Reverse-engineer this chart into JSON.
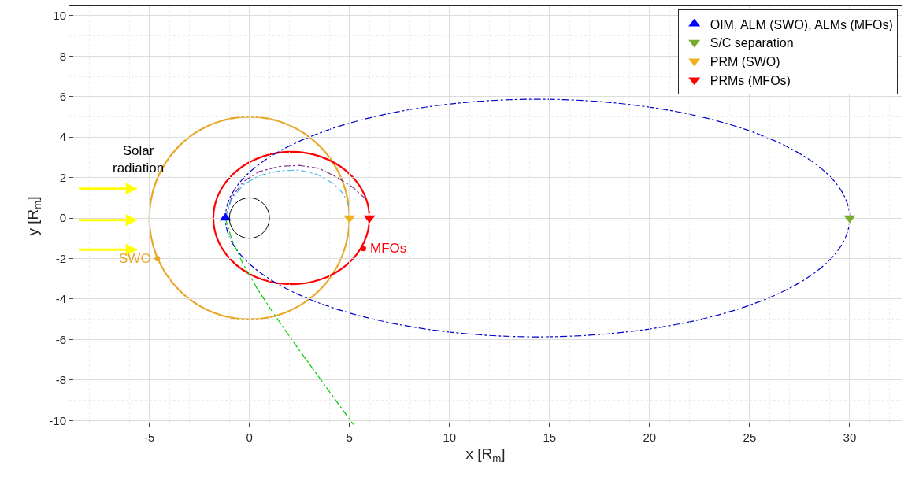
{
  "chart_data": {
    "type": "line",
    "xlabel": "x [R$_{m}$]",
    "ylabel": "y [R$_{m}$]",
    "xlim": [
      -9,
      32.6
    ],
    "ylim": [
      -10.3,
      10.5
    ],
    "xticks": [
      -5,
      0,
      5,
      10,
      15,
      20,
      25,
      30
    ],
    "yticks": [
      -10,
      -8,
      -6,
      -4,
      -2,
      0,
      2,
      4,
      6,
      8,
      10
    ],
    "grid": true,
    "legend": "top right",
    "annotations": [
      "Solar\nradiation",
      {
        "text": "SWO",
        "x": -4.6,
        "y": -2
      },
      {
        "text": "MFOs",
        "x": 5.7,
        "y": -1.5
      }
    ],
    "series": [
      {
        "color": "#7e2f8e",
        "line_style": "dashdot",
        "x": [
          -1.2,
          -0.9,
          -0.3,
          0.5,
          1.5,
          2.5,
          3.5,
          4.4,
          5.2,
          5.8
        ],
        "values": [
          0,
          1.0,
          1.8,
          2.3,
          2.55,
          2.6,
          2.45,
          2.0,
          1.5,
          0.95
        ]
      },
      {
        "color": "#4dbeee",
        "line_style": "dashdot",
        "x": [
          -1.2,
          -0.9,
          -0.3,
          0.5,
          1.5,
          2.5,
          3.4,
          4.2,
          4.7,
          4.95
        ],
        "values": [
          0,
          0.9,
          1.65,
          2.1,
          2.33,
          2.37,
          2.15,
          1.7,
          1.2,
          0.6
        ]
      },
      {
        "color": "#00cc00",
        "line_style": "dashdot",
        "x": [
          -1.2,
          -0.9,
          -0.35,
          0.4,
          1.2,
          2.4,
          3.8,
          5.2
        ],
        "values": [
          0,
          -1,
          -2.2,
          -3.5,
          -4.7,
          -6.4,
          -8.3,
          -10.2
        ]
      },
      {
        "type": "scatter",
        "color": "#e8a82a",
        "marker": "circle",
        "x": [
          -4.6
        ],
        "values": [
          -2
        ]
      },
      {
        "type": "scatter",
        "color": "#ff0000",
        "marker": "circle",
        "x": [
          5.7
        ],
        "values": [
          -1.5
        ]
      },
      {
        "type": "scatter",
        "name": "OIM, ALM (SWO), ALMs (MFOs)",
        "color": "#0000ff",
        "marker": "triangle",
        "x": [
          -1.2
        ],
        "values": [
          0
        ]
      },
      {
        "type": "scatter",
        "name": "S/C separation",
        "color": "#77ac30",
        "marker": "triangle-down",
        "x": [
          30
        ],
        "values": [
          0
        ]
      },
      {
        "type": "scatter",
        "name": "PRM (SWO)",
        "color": "#edb120",
        "marker": "triangle-down",
        "x": [
          5
        ],
        "values": [
          0
        ]
      },
      {
        "type": "scatter",
        "name": "PRMs (MFOs)",
        "color": "#ff0000",
        "marker": "triangle-down",
        "x": [
          6
        ],
        "values": [
          0
        ]
      }
    ]
  }
}
